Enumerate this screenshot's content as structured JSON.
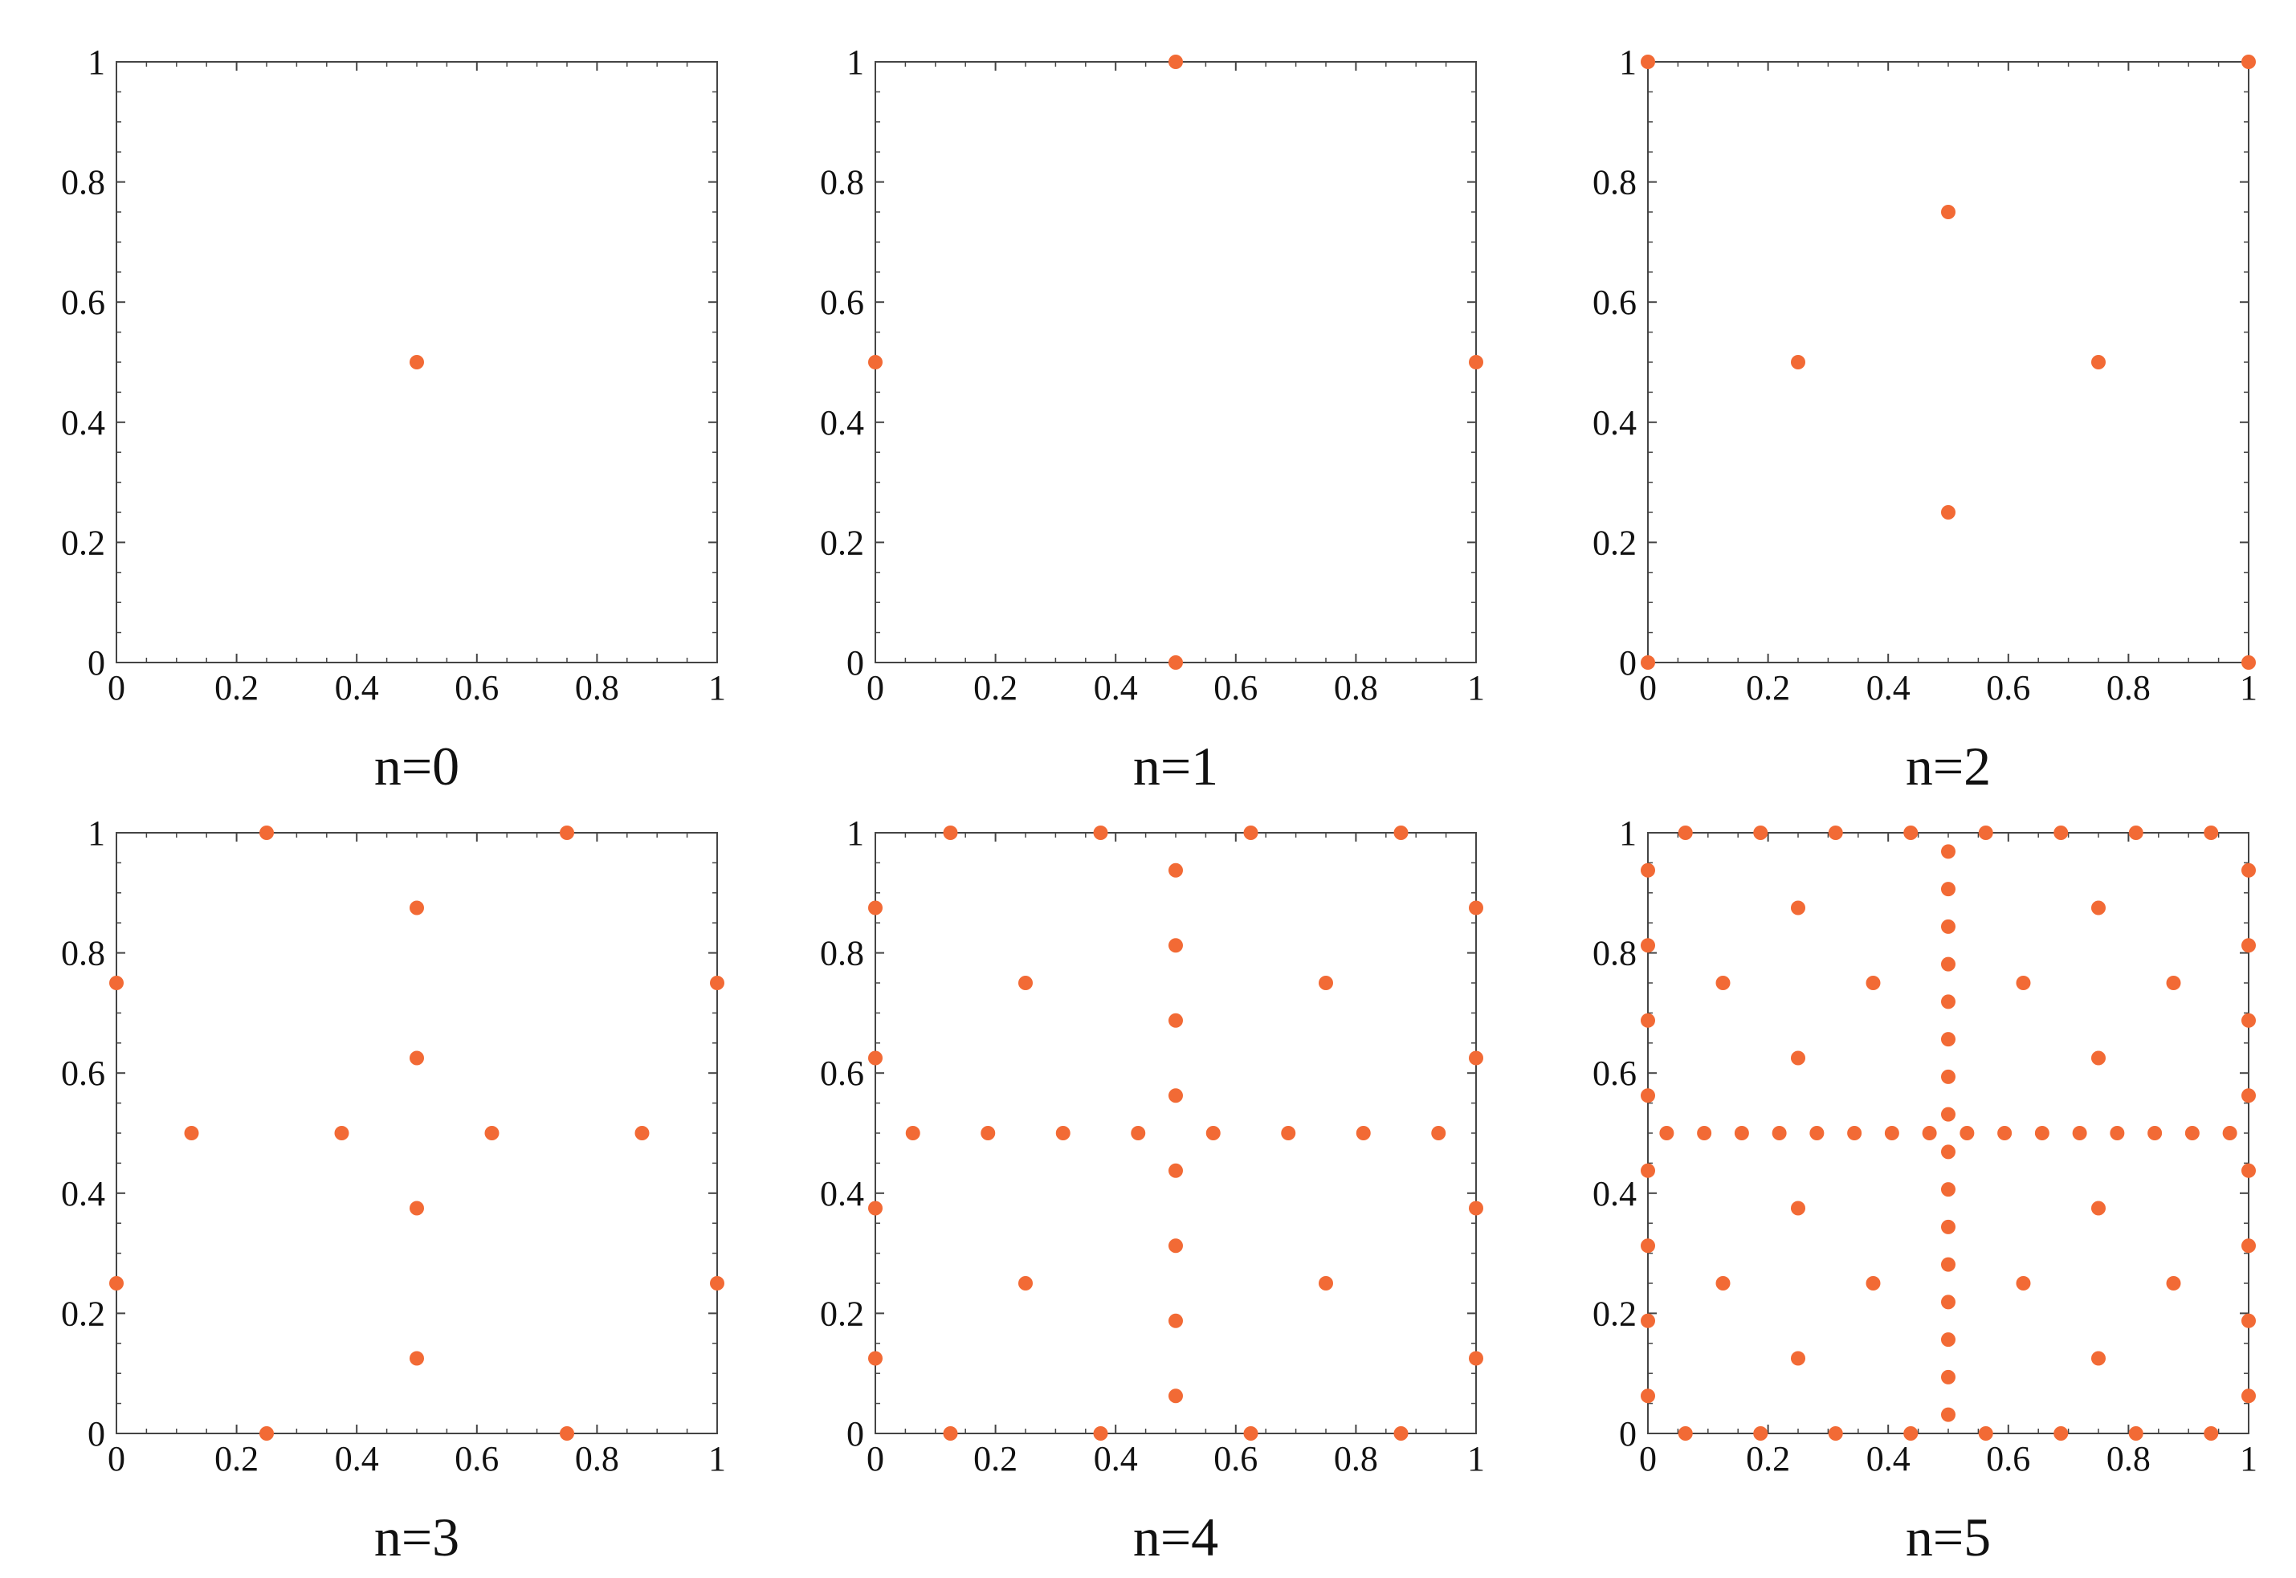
{
  "figure": {
    "marker_color": "#f26a35",
    "axis_color": "#444444",
    "text_color": "#111111"
  },
  "chart_data": [
    {
      "type": "scatter",
      "title": "n=0",
      "xlim": [
        0,
        1
      ],
      "ylim": [
        0,
        1
      ],
      "xticks": [
        "0",
        "0.2",
        "0.4",
        "0.6",
        "0.8",
        "1"
      ],
      "yticks": [
        "0",
        "0.2",
        "0.4",
        "0.6",
        "0.8",
        "1"
      ],
      "grid": false,
      "points": [
        [
          0.5,
          0.5
        ]
      ]
    },
    {
      "type": "scatter",
      "title": "n=1",
      "xlim": [
        0,
        1
      ],
      "ylim": [
        0,
        1
      ],
      "xticks": [
        "0",
        "0.2",
        "0.4",
        "0.6",
        "0.8",
        "1"
      ],
      "yticks": [
        "0",
        "0.2",
        "0.4",
        "0.6",
        "0.8",
        "1"
      ],
      "grid": false,
      "points": [
        [
          0.5,
          1
        ],
        [
          0.5,
          0
        ],
        [
          0,
          0.5
        ],
        [
          1,
          0.5
        ]
      ]
    },
    {
      "type": "scatter",
      "title": "n=2",
      "xlim": [
        0,
        1
      ],
      "ylim": [
        0,
        1
      ],
      "xticks": [
        "0",
        "0.2",
        "0.4",
        "0.6",
        "0.8",
        "1"
      ],
      "yticks": [
        "0",
        "0.2",
        "0.4",
        "0.6",
        "0.8",
        "1"
      ],
      "grid": false,
      "points": [
        [
          0,
          0
        ],
        [
          1,
          0
        ],
        [
          0,
          1
        ],
        [
          1,
          1
        ],
        [
          0.5,
          0.75
        ],
        [
          0.25,
          0.5
        ],
        [
          0.75,
          0.5
        ],
        [
          0.5,
          0.25
        ]
      ]
    },
    {
      "type": "scatter",
      "title": "n=3",
      "xlim": [
        0,
        1
      ],
      "ylim": [
        0,
        1
      ],
      "xticks": [
        "0",
        "0.2",
        "0.4",
        "0.6",
        "0.8",
        "1"
      ],
      "yticks": [
        "0",
        "0.2",
        "0.4",
        "0.6",
        "0.8",
        "1"
      ],
      "grid": false,
      "points": [
        [
          0.25,
          1
        ],
        [
          0.75,
          1
        ],
        [
          0.25,
          0
        ],
        [
          0.75,
          0
        ],
        [
          0,
          0.75
        ],
        [
          0,
          0.25
        ],
        [
          1,
          0.75
        ],
        [
          1,
          0.25
        ],
        [
          0.5,
          0.875
        ],
        [
          0.5,
          0.625
        ],
        [
          0.5,
          0.375
        ],
        [
          0.5,
          0.125
        ],
        [
          0.125,
          0.5
        ],
        [
          0.375,
          0.5
        ],
        [
          0.625,
          0.5
        ],
        [
          0.875,
          0.5
        ]
      ]
    },
    {
      "type": "scatter",
      "title": "n=4",
      "xlim": [
        0,
        1
      ],
      "ylim": [
        0,
        1
      ],
      "xticks": [
        "0",
        "0.2",
        "0.4",
        "0.6",
        "0.8",
        "1"
      ],
      "yticks": [
        "0",
        "0.2",
        "0.4",
        "0.6",
        "0.8",
        "1"
      ],
      "grid": false,
      "points": [
        [
          0.125,
          1
        ],
        [
          0.375,
          1
        ],
        [
          0.625,
          1
        ],
        [
          0.875,
          1
        ],
        [
          0.125,
          0
        ],
        [
          0.375,
          0
        ],
        [
          0.625,
          0
        ],
        [
          0.875,
          0
        ],
        [
          0,
          0.875
        ],
        [
          0,
          0.625
        ],
        [
          0,
          0.375
        ],
        [
          0,
          0.125
        ],
        [
          1,
          0.875
        ],
        [
          1,
          0.625
        ],
        [
          1,
          0.375
        ],
        [
          1,
          0.125
        ],
        [
          0.5,
          0.9375
        ],
        [
          0.5,
          0.8125
        ],
        [
          0.5,
          0.6875
        ],
        [
          0.5,
          0.5625
        ],
        [
          0.5,
          0.4375
        ],
        [
          0.5,
          0.3125
        ],
        [
          0.5,
          0.1875
        ],
        [
          0.5,
          0.0625
        ],
        [
          0.0625,
          0.5
        ],
        [
          0.1875,
          0.5
        ],
        [
          0.3125,
          0.5
        ],
        [
          0.4375,
          0.5
        ],
        [
          0.5625,
          0.5
        ],
        [
          0.6875,
          0.5
        ],
        [
          0.8125,
          0.5
        ],
        [
          0.9375,
          0.5
        ],
        [
          0.25,
          0.75
        ],
        [
          0.75,
          0.75
        ],
        [
          0.25,
          0.25
        ],
        [
          0.75,
          0.25
        ]
      ]
    },
    {
      "type": "scatter",
      "title": "n=5",
      "xlim": [
        0,
        1
      ],
      "ylim": [
        0,
        1
      ],
      "xticks": [
        "0",
        "0.2",
        "0.4",
        "0.6",
        "0.8",
        "1"
      ],
      "yticks": [
        "0",
        "0.2",
        "0.4",
        "0.6",
        "0.8",
        "1"
      ],
      "grid": false,
      "points": [
        [
          0.0625,
          1
        ],
        [
          0.1875,
          1
        ],
        [
          0.3125,
          1
        ],
        [
          0.4375,
          1
        ],
        [
          0.5625,
          1
        ],
        [
          0.6875,
          1
        ],
        [
          0.8125,
          1
        ],
        [
          0.9375,
          1
        ],
        [
          0.0625,
          0
        ],
        [
          0.1875,
          0
        ],
        [
          0.3125,
          0
        ],
        [
          0.4375,
          0
        ],
        [
          0.5625,
          0
        ],
        [
          0.6875,
          0
        ],
        [
          0.8125,
          0
        ],
        [
          0.9375,
          0
        ],
        [
          0,
          0.9375
        ],
        [
          0,
          0.8125
        ],
        [
          0,
          0.6875
        ],
        [
          0,
          0.5625
        ],
        [
          0,
          0.4375
        ],
        [
          0,
          0.3125
        ],
        [
          0,
          0.1875
        ],
        [
          0,
          0.0625
        ],
        [
          1,
          0.9375
        ],
        [
          1,
          0.8125
        ],
        [
          1,
          0.6875
        ],
        [
          1,
          0.5625
        ],
        [
          1,
          0.4375
        ],
        [
          1,
          0.3125
        ],
        [
          1,
          0.1875
        ],
        [
          1,
          0.0625
        ],
        [
          0.5,
          0.96875
        ],
        [
          0.5,
          0.90625
        ],
        [
          0.5,
          0.84375
        ],
        [
          0.5,
          0.78125
        ],
        [
          0.5,
          0.71875
        ],
        [
          0.5,
          0.65625
        ],
        [
          0.5,
          0.59375
        ],
        [
          0.5,
          0.53125
        ],
        [
          0.5,
          0.46875
        ],
        [
          0.5,
          0.40625
        ],
        [
          0.5,
          0.34375
        ],
        [
          0.5,
          0.28125
        ],
        [
          0.5,
          0.21875
        ],
        [
          0.5,
          0.15625
        ],
        [
          0.5,
          0.09375
        ],
        [
          0.5,
          0.03125
        ],
        [
          0.03125,
          0.5
        ],
        [
          0.09375,
          0.5
        ],
        [
          0.15625,
          0.5
        ],
        [
          0.21875,
          0.5
        ],
        [
          0.28125,
          0.5
        ],
        [
          0.34375,
          0.5
        ],
        [
          0.40625,
          0.5
        ],
        [
          0.46875,
          0.5
        ],
        [
          0.53125,
          0.5
        ],
        [
          0.59375,
          0.5
        ],
        [
          0.65625,
          0.5
        ],
        [
          0.71875,
          0.5
        ],
        [
          0.78125,
          0.5
        ],
        [
          0.84375,
          0.5
        ],
        [
          0.90625,
          0.5
        ],
        [
          0.96875,
          0.5
        ],
        [
          0.25,
          0.875
        ],
        [
          0.75,
          0.875
        ],
        [
          0.125,
          0.75
        ],
        [
          0.375,
          0.75
        ],
        [
          0.625,
          0.75
        ],
        [
          0.875,
          0.75
        ],
        [
          0.25,
          0.625
        ],
        [
          0.75,
          0.625
        ],
        [
          0.25,
          0.375
        ],
        [
          0.75,
          0.375
        ],
        [
          0.125,
          0.25
        ],
        [
          0.375,
          0.25
        ],
        [
          0.625,
          0.25
        ],
        [
          0.875,
          0.25
        ],
        [
          0.25,
          0.125
        ],
        [
          0.75,
          0.125
        ]
      ]
    }
  ]
}
